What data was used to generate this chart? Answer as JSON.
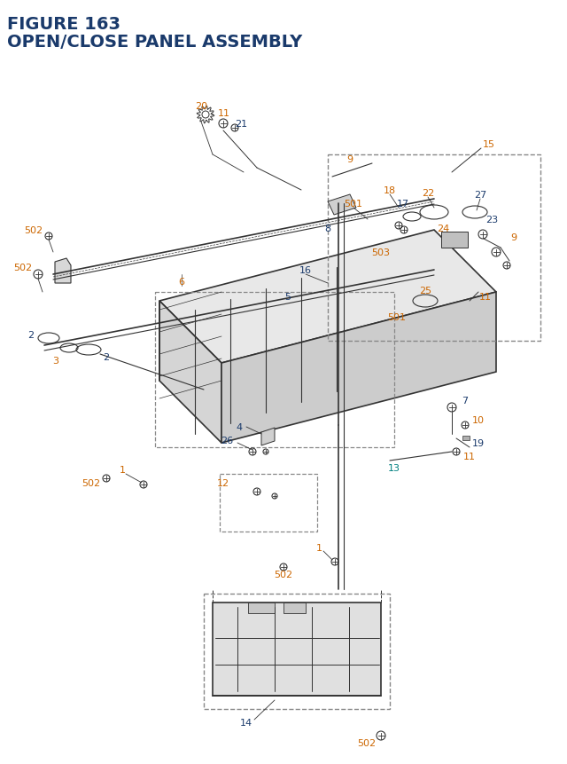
{
  "title_line1": "FIGURE 163",
  "title_line2": "OPEN/CLOSE PANEL ASSEMBLY",
  "title_color": "#1a3a6b",
  "title_fontsize": 14,
  "bg_color": "#ffffff",
  "part_label_color_orange": "#cc6600",
  "part_label_color_blue": "#1a3a6b",
  "part_label_color_teal": "#008080",
  "part_label_color_black": "#222222"
}
